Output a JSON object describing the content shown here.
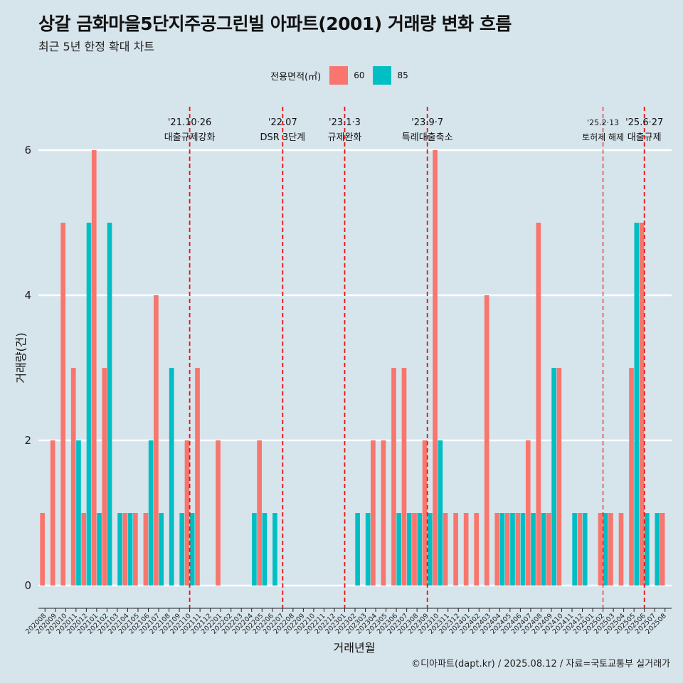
{
  "title": "상갈 금화마을5단지주공그린빌 아파트(2001) 거래량 변화 흐름",
  "subtitle": "최근 5년 한정 확대 차트",
  "caption": "©디아파트(dapt.kr) / 2025.08.12 / 자료=국토교통부 실거래가",
  "legend": {
    "title": "전용면적(㎡)",
    "items": [
      {
        "label": "60",
        "color": "#f8766d"
      },
      {
        "label": "85",
        "color": "#00bfc4"
      }
    ]
  },
  "chart_data": {
    "type": "bar",
    "title": "상갈 금화마을5단지주공그린빌 아파트(2001) 거래량 변화 흐름",
    "xlabel": "거래년월",
    "ylabel": "거래량(건)",
    "ylim": [
      0,
      6.4
    ],
    "yticks": [
      0,
      2,
      4,
      6
    ],
    "grid": true,
    "legend_position": "top",
    "categories": [
      "202008",
      "202009",
      "202010",
      "202011",
      "202012",
      "202101",
      "202102",
      "202103",
      "202104",
      "202105",
      "202106",
      "202107",
      "202108",
      "202109",
      "202110",
      "202111",
      "202112",
      "202201",
      "202202",
      "202203",
      "202204",
      "202205",
      "202206",
      "202207",
      "202208",
      "202209",
      "202210",
      "202211",
      "202212",
      "202301",
      "202302",
      "202303",
      "202304",
      "202305",
      "202306",
      "202307",
      "202308",
      "202309",
      "202310",
      "202311",
      "202312",
      "202401",
      "202402",
      "202403",
      "202404",
      "202405",
      "202406",
      "202407",
      "202408",
      "202409",
      "202410",
      "202411",
      "202412",
      "202501",
      "202502",
      "202503",
      "202504",
      "202505",
      "202506",
      "202507",
      "202508"
    ],
    "series": [
      {
        "name": "60",
        "color": "#f8766d",
        "values": [
          1,
          2,
          5,
          3,
          1,
          6,
          3,
          0,
          1,
          1,
          1,
          4,
          0,
          0,
          2,
          3,
          0,
          2,
          0,
          0,
          0,
          2,
          0,
          0,
          0,
          0,
          0,
          0,
          0,
          0,
          0,
          0,
          2,
          2,
          3,
          3,
          1,
          2,
          6,
          1,
          1,
          1,
          1,
          4,
          1,
          1,
          1,
          2,
          5,
          1,
          3,
          0,
          1,
          0,
          1,
          1,
          1,
          3,
          5,
          0,
          1
        ]
      },
      {
        "name": "85",
        "color": "#00bfc4",
        "values": [
          0,
          0,
          0,
          2,
          5,
          1,
          5,
          1,
          1,
          0,
          2,
          1,
          3,
          1,
          1,
          0,
          0,
          0,
          0,
          0,
          1,
          1,
          1,
          0,
          0,
          0,
          0,
          0,
          0,
          0,
          1,
          1,
          0,
          0,
          1,
          1,
          1,
          1,
          2,
          0,
          0,
          0,
          0,
          0,
          1,
          1,
          1,
          1,
          1,
          3,
          0,
          1,
          1,
          0,
          1,
          0,
          0,
          5,
          1,
          1,
          0
        ]
      }
    ],
    "annotations": [
      {
        "category": "202110",
        "date": "'21.10·26",
        "text": "대출규제강화",
        "style": "dashed"
      },
      {
        "category": "202207",
        "date": "'22.07",
        "text": "DSR 3단계",
        "style": "dashed"
      },
      {
        "category": "202301",
        "date": "'23.1·3",
        "text": "규제완화",
        "style": "dashed"
      },
      {
        "category": "202309",
        "date": "'23.9·7",
        "text": "특례대출축소",
        "style": "dashed"
      },
      {
        "category": "202502",
        "date": "'25.2·13",
        "text": "토허제 해제",
        "style": "thin-dashed"
      },
      {
        "category": "202506",
        "date": "'25.6·27",
        "text": "대출규제",
        "style": "dashed"
      }
    ]
  }
}
